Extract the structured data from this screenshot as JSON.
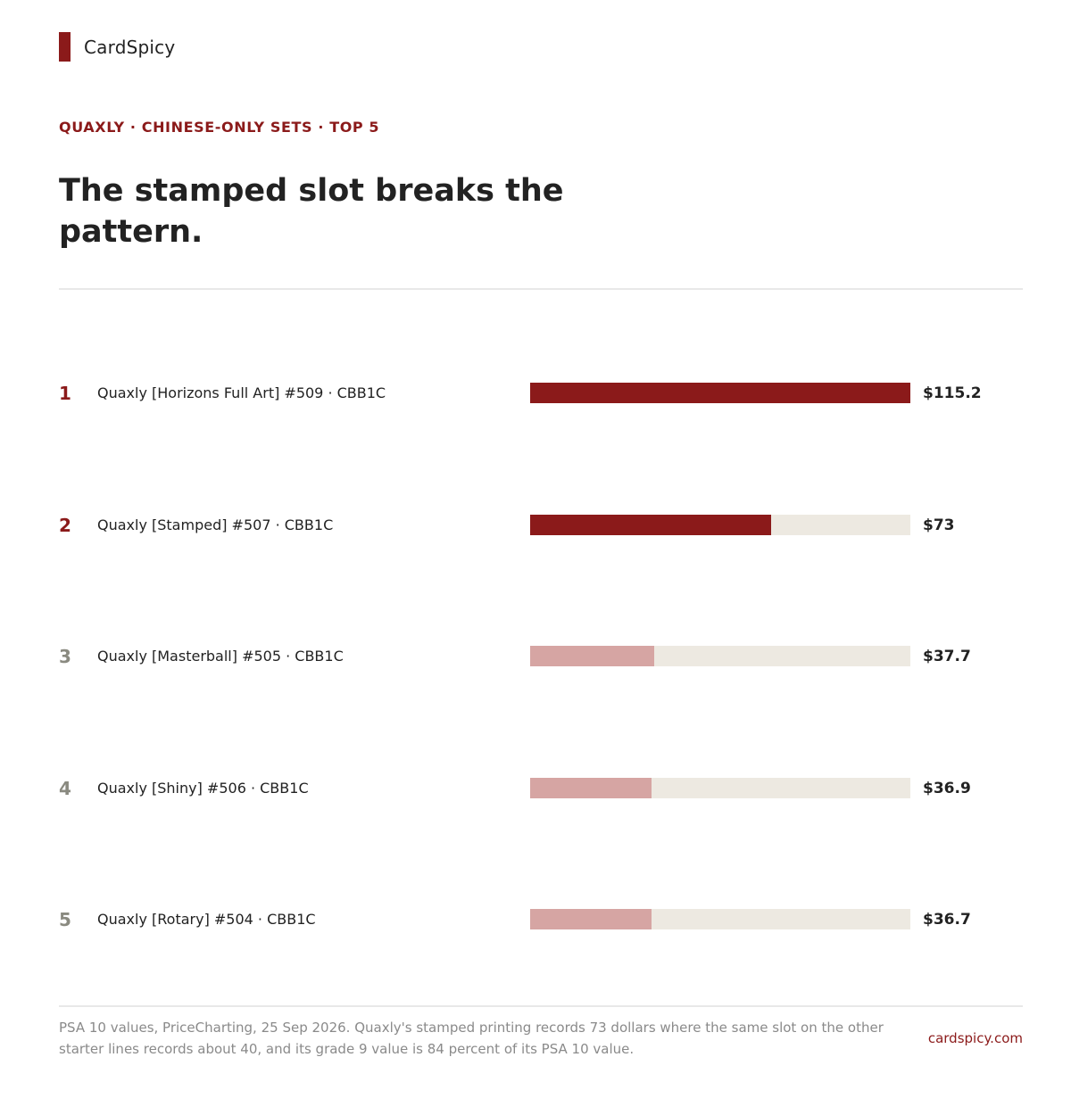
{
  "brand": {
    "name": "CardSpicy"
  },
  "kicker": "QUAXLY · CHINESE-ONLY SETS · TOP 5",
  "headline": "The stamped slot breaks the pattern.",
  "colors": {
    "accent": "#8b1a1a",
    "highlight_bar": "#8b1a1a",
    "muted_bar": "#d6a5a3",
    "track": "#ede9e1",
    "muted_rank": "#8a8a80"
  },
  "chart_data": {
    "type": "bar",
    "orientation": "horizontal",
    "categories": [
      "Quaxly [Horizons Full Art] #509 · CBB1C",
      "Quaxly [Stamped] #507 · CBB1C",
      "Quaxly [Masterball] #505 · CBB1C",
      "Quaxly [Shiny] #506 · CBB1C",
      "Quaxly [Rotary] #504 · CBB1C"
    ],
    "ranks": [
      "1",
      "2",
      "3",
      "4",
      "5"
    ],
    "values": [
      115.2,
      73,
      37.7,
      36.9,
      36.7
    ],
    "value_labels": [
      "$115.2",
      "$73",
      "$37.7",
      "$36.9",
      "$36.7"
    ],
    "highlighted": [
      true,
      true,
      false,
      false,
      false
    ],
    "xlim": [
      0,
      115.2
    ]
  },
  "footer": {
    "note": "PSA 10 values, PriceCharting, 25 Sep 2026. Quaxly's stamped printing records 73 dollars where the same slot on the other starter lines records about 40, and its grade 9 value is 84 percent of its PSA 10 value.",
    "site": "cardspicy.com"
  }
}
